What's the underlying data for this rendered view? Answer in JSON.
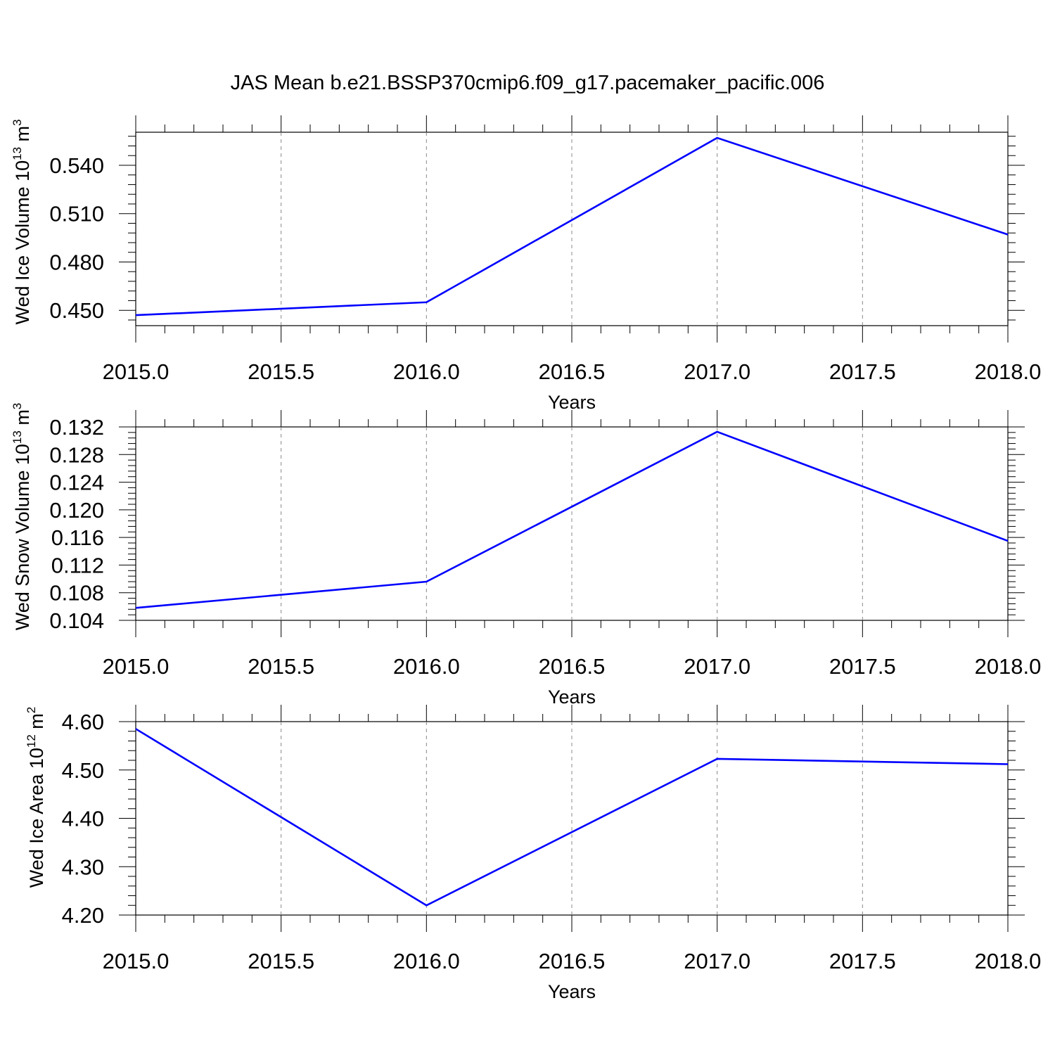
{
  "title": "JAS Mean b.e21.BSSP370cmip6.f09_g17.pacemaker_pacific.006",
  "colors": {
    "line": "#0000ff",
    "axis": "#000000",
    "grid": "#888888"
  },
  "chart_data": [
    {
      "type": "line",
      "x": [
        2015.0,
        2016.0,
        2017.0,
        2018.0
      ],
      "series": [
        {
          "values": [
            0.447,
            0.455,
            0.557,
            0.497
          ]
        }
      ],
      "xlabel": "Years",
      "ylabel": {
        "text": "Wed Ice Volume 10",
        "exp": "13",
        "unit": " m",
        "unit_exp": "3"
      },
      "xlim": [
        2015.0,
        2018.0
      ],
      "ylim": [
        0.4405,
        0.5605
      ],
      "xticks": [
        "2015.0",
        "2015.5",
        "2016.0",
        "2016.5",
        "2017.0",
        "2017.5",
        "2018.0"
      ],
      "yticks": [
        "0.450",
        "0.480",
        "0.510",
        "0.540"
      ],
      "grid": "x-dashed"
    },
    {
      "type": "line",
      "x": [
        2015.0,
        2016.0,
        2017.0,
        2018.0
      ],
      "series": [
        {
          "values": [
            0.1058,
            0.1096,
            0.1313,
            0.1155
          ]
        }
      ],
      "xlabel": "Years",
      "ylabel": {
        "text": "Wed Snow Volume 10",
        "exp": "13",
        "unit": " m",
        "unit_exp": "3"
      },
      "xlim": [
        2015.0,
        2018.0
      ],
      "ylim": [
        0.104,
        0.132
      ],
      "xticks": [
        "2015.0",
        "2015.5",
        "2016.0",
        "2016.5",
        "2017.0",
        "2017.5",
        "2018.0"
      ],
      "yticks": [
        "0.104",
        "0.108",
        "0.112",
        "0.116",
        "0.120",
        "0.124",
        "0.128",
        "0.132"
      ],
      "grid": "x-dashed"
    },
    {
      "type": "line",
      "x": [
        2015.0,
        2016.0,
        2017.0,
        2018.0
      ],
      "series": [
        {
          "values": [
            4.585,
            4.22,
            4.523,
            4.512
          ]
        }
      ],
      "xlabel": "Years",
      "ylabel": {
        "text": "Wed Ice Area 10",
        "exp": "12",
        "unit": " m",
        "unit_exp": "2"
      },
      "xlim": [
        2015.0,
        2018.0
      ],
      "ylim": [
        4.2,
        4.6
      ],
      "xticks": [
        "2015.0",
        "2015.5",
        "2016.0",
        "2016.5",
        "2017.0",
        "2017.5",
        "2018.0"
      ],
      "yticks": [
        "4.20",
        "4.30",
        "4.40",
        "4.50",
        "4.60"
      ],
      "grid": "x-dashed"
    }
  ]
}
